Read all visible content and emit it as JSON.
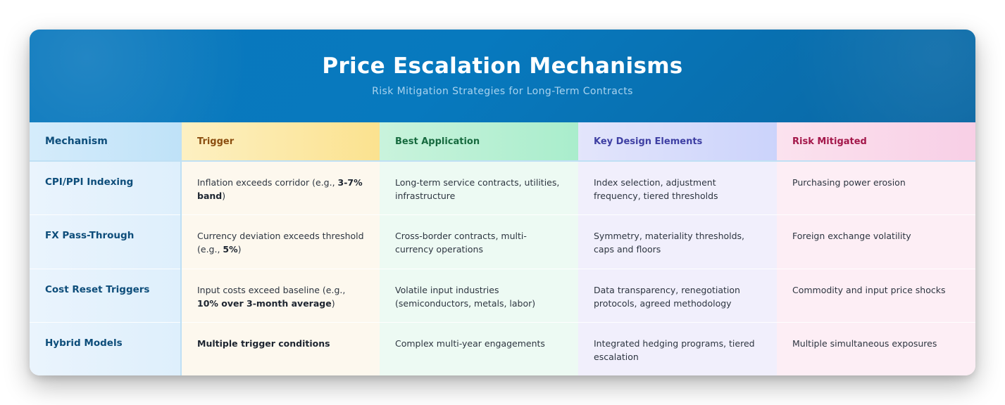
{
  "header": {
    "title": "Price Escalation Mechanisms",
    "subtitle": "Risk Mitigation Strategies for Long-Term Contracts"
  },
  "table": {
    "columns": [
      "Mechanism",
      "Trigger",
      "Best Application",
      "Key Design Elements",
      "Risk Mitigated"
    ],
    "rows": [
      {
        "mechanism": "CPI/PPI Indexing",
        "trigger": {
          "pre": "Inflation exceeds corridor (e.g., ",
          "bold": "3-7% band",
          "post": ")"
        },
        "application": "Long-term service contracts, utilities, infrastructure",
        "design": "Index selection, adjustment frequency, tiered thresholds",
        "risk": "Purchasing power erosion"
      },
      {
        "mechanism": "FX Pass-Through",
        "trigger": {
          "pre": "Currency deviation exceeds threshold (e.g., ",
          "bold": "5%",
          "post": ")"
        },
        "application": "Cross-border contracts, multi-currency operations",
        "design": "Symmetry, materiality thresholds, caps and floors",
        "risk": "Foreign exchange volatility"
      },
      {
        "mechanism": "Cost Reset Triggers",
        "trigger": {
          "pre": "Input costs exceed baseline (e.g., ",
          "bold": "10% over 3-month average",
          "post": ")"
        },
        "application": "Volatile input industries (semiconductors, metals, labor)",
        "design": "Data transparency, renegotiation protocols, agreed methodology",
        "risk": "Commodity and input price shocks"
      },
      {
        "mechanism": "Hybrid Models",
        "trigger": {
          "pre": "",
          "bold": "Multiple trigger conditions",
          "post": ""
        },
        "application": "Complex multi-year engagements",
        "design": "Integrated hedging programs, tiered escalation",
        "risk": "Multiple simultaneous exposures"
      }
    ]
  }
}
